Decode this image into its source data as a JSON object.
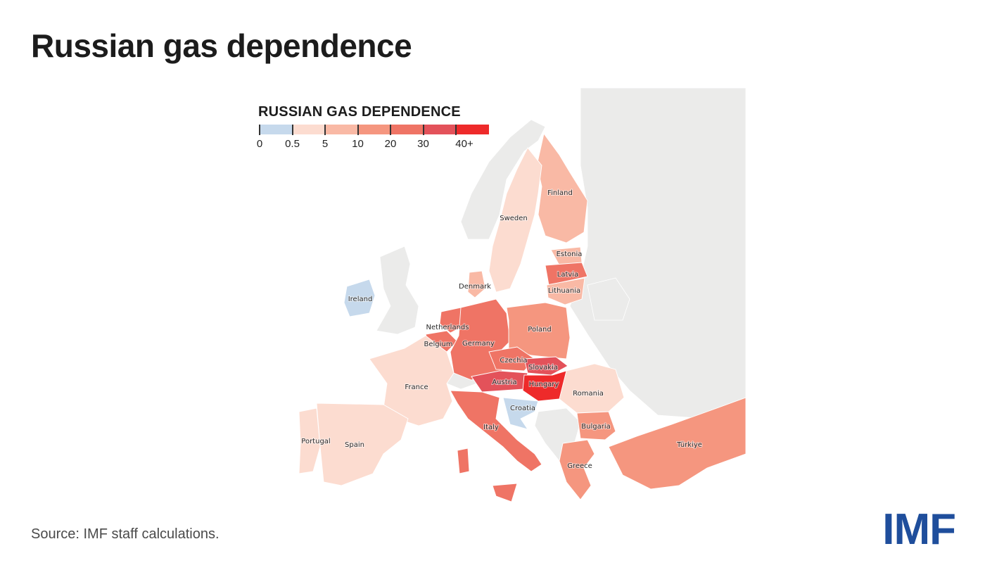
{
  "title": "Russian gas dependence",
  "legend": {
    "title": "RUSSIAN GAS DEPENDENCE",
    "bins": [
      {
        "from": "0",
        "to": "0.5",
        "color": "#c6d9ec"
      },
      {
        "from": "0.5",
        "to": "5",
        "color": "#fcdcd0"
      },
      {
        "from": "5",
        "to": "10",
        "color": "#f9b9a5"
      },
      {
        "from": "10",
        "to": "20",
        "color": "#f5967f"
      },
      {
        "from": "20",
        "to": "30",
        "color": "#ef7465"
      },
      {
        "from": "30",
        "to": "40+",
        "color": "#e3525a"
      },
      {
        "from": "40+",
        "to": "",
        "color": "#ee2a2a"
      }
    ],
    "tick_labels": [
      "0",
      "0.5",
      "5",
      "10",
      "20",
      "30",
      "40+"
    ]
  },
  "map": {
    "no_data_color": "#ebebea",
    "water_color": "#ffffff",
    "countries": [
      {
        "name": "Finland",
        "bin": "5-10"
      },
      {
        "name": "Sweden",
        "bin": "0.5-5"
      },
      {
        "name": "Estonia",
        "bin": "5-10"
      },
      {
        "name": "Latvia",
        "bin": "20-30"
      },
      {
        "name": "Lithuania",
        "bin": "5-10"
      },
      {
        "name": "Denmark",
        "bin": "5-10"
      },
      {
        "name": "Ireland",
        "bin": "0-0.5"
      },
      {
        "name": "Netherlands",
        "bin": "20-30"
      },
      {
        "name": "Belgium",
        "bin": "20-30"
      },
      {
        "name": "Germany",
        "bin": "20-30"
      },
      {
        "name": "Poland",
        "bin": "10-20"
      },
      {
        "name": "Czechia",
        "bin": "20-30"
      },
      {
        "name": "Slovakia",
        "bin": "30-40"
      },
      {
        "name": "Austria",
        "bin": "30-40"
      },
      {
        "name": "Hungary",
        "bin": "40+"
      },
      {
        "name": "France",
        "bin": "0.5-5"
      },
      {
        "name": "Romania",
        "bin": "0.5-5"
      },
      {
        "name": "Croatia",
        "bin": "0-0.5"
      },
      {
        "name": "Italy",
        "bin": "20-30"
      },
      {
        "name": "Bulgaria",
        "bin": "10-20"
      },
      {
        "name": "Portugal",
        "bin": "0.5-5"
      },
      {
        "name": "Spain",
        "bin": "0.5-5"
      },
      {
        "name": "Greece",
        "bin": "10-20"
      },
      {
        "name": "Türkiye",
        "bin": "10-20"
      }
    ]
  },
  "source": "Source: IMF staff calculations.",
  "logo": "IMF"
}
